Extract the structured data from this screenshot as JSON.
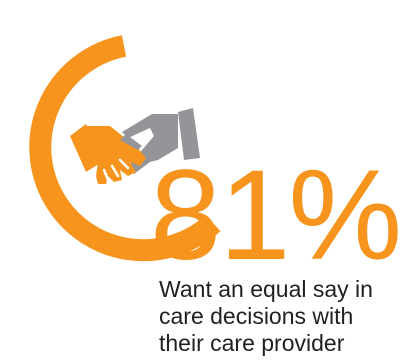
{
  "stat": {
    "value": "81%",
    "caption": "Want an equal say in care decisions with their care provider",
    "icon": "handshake-icon",
    "progress_fraction": 0.81
  },
  "colors": {
    "accent": "#F7941D",
    "icon_gray": "#939598",
    "text": "#231f20"
  }
}
